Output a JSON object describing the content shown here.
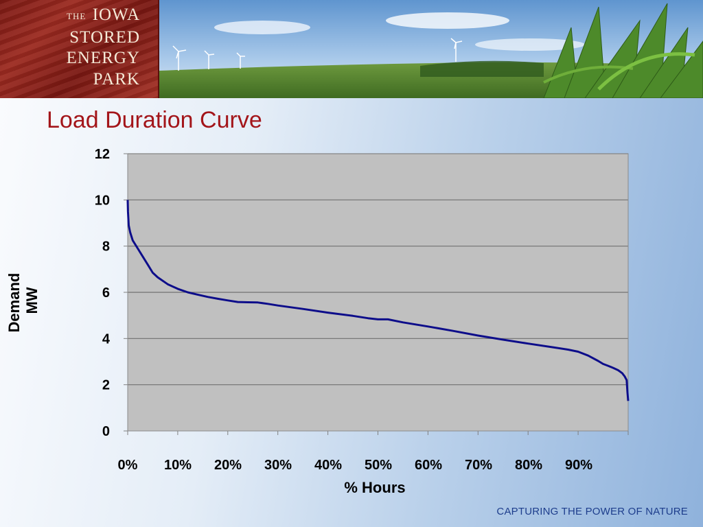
{
  "header": {
    "logo_lines": [
      "THE",
      "IOWA",
      "STORED",
      "ENERGY",
      "PARK"
    ]
  },
  "slide": {
    "title": "Load Duration Curve",
    "footer": "CAPTURING THE POWER OF NATURE"
  },
  "colors": {
    "title": "#a3151a",
    "line": "#0d0d8a",
    "plot_area": "#c0c0c0",
    "footer": "#1d3d8c",
    "logo_bg": "#8e231b"
  },
  "chart_data": {
    "type": "line",
    "title": "",
    "xlabel": "% Hours",
    "ylabel": "Demand MW",
    "ylabel_lines": [
      "Demand",
      "MW"
    ],
    "xlim": [
      0,
      100
    ],
    "ylim": [
      0,
      12
    ],
    "y_ticks": [
      0,
      2,
      4,
      6,
      8,
      10,
      12
    ],
    "x_ticks": [
      0,
      10,
      20,
      30,
      40,
      50,
      60,
      70,
      80,
      90
    ],
    "x_tick_labels": [
      "0%",
      "10%",
      "20%",
      "30%",
      "40%",
      "50%",
      "60%",
      "70%",
      "80%",
      "90%"
    ],
    "grid": true,
    "legend": "none",
    "series": [
      {
        "x": [
          0,
          0.05,
          0.2,
          0.5,
          1,
          2,
          3,
          4,
          5,
          6,
          8,
          10,
          12,
          14,
          16,
          18,
          20,
          22,
          24,
          26,
          28,
          30,
          35,
          40,
          45,
          48,
          50,
          52,
          55,
          60,
          65,
          70,
          75,
          80,
          85,
          88,
          90,
          92,
          94,
          95,
          96,
          97,
          98,
          98.8,
          99.3,
          99.7,
          99.85,
          100
        ],
        "y": [
          10.0,
          9.5,
          8.9,
          8.6,
          8.25,
          7.9,
          7.55,
          7.2,
          6.85,
          6.65,
          6.35,
          6.15,
          6.0,
          5.9,
          5.8,
          5.72,
          5.65,
          5.58,
          5.57,
          5.56,
          5.5,
          5.43,
          5.28,
          5.12,
          4.98,
          4.88,
          4.83,
          4.83,
          4.7,
          4.52,
          4.33,
          4.13,
          3.95,
          3.78,
          3.62,
          3.52,
          3.43,
          3.26,
          3.03,
          2.9,
          2.82,
          2.73,
          2.63,
          2.5,
          2.36,
          2.2,
          1.7,
          1.3
        ]
      }
    ]
  }
}
